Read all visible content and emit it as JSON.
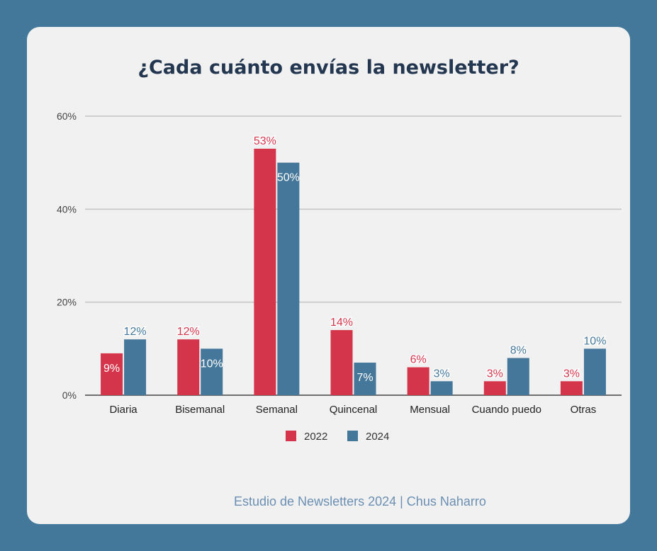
{
  "footer": "Estudio de Newsletters 2024  |  Chus Naharro",
  "chart_data": {
    "type": "bar",
    "title": "¿Cada cuánto envías la newsletter?",
    "categories": [
      "Diaria",
      "Bisemanal",
      "Semanal",
      "Quincenal",
      "Mensual",
      "Cuando puedo",
      "Otras"
    ],
    "series": [
      {
        "name": "2022",
        "color": "#d4354a",
        "values": [
          9,
          12,
          53,
          14,
          6,
          3,
          3
        ],
        "labels": [
          "9%",
          "12%",
          "53%",
          "14%",
          "6%",
          "3%",
          "3%"
        ]
      },
      {
        "name": "2024",
        "color": "#44779a",
        "values": [
          12,
          10,
          50,
          7,
          3,
          8,
          10
        ],
        "labels": [
          "12%",
          "10%",
          "50%",
          "7%",
          "3%",
          "8%",
          "10%"
        ]
      }
    ],
    "yticks": [
      "0%",
      "20%",
      "40%",
      "60%"
    ],
    "ylim": [
      0,
      60
    ],
    "grid": true,
    "legend": "bottom-center"
  }
}
